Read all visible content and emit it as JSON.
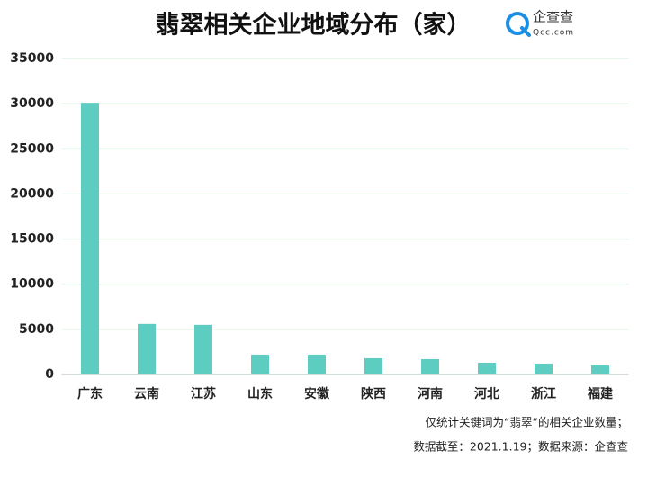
{
  "chart_data": {
    "type": "bar",
    "title": "翡翠相关企业地域分布（家）",
    "logo_text": "企查查",
    "logo_subtext": "Qcc.com",
    "categories": [
      "广东",
      "云南",
      "江苏",
      "山东",
      "安徽",
      "陕西",
      "河南",
      "河北",
      "浙江",
      "福建"
    ],
    "values": [
      30100,
      5600,
      5500,
      2200,
      2200,
      1800,
      1700,
      1300,
      1200,
      1000
    ],
    "color": "#5ecdc1",
    "ylim": [
      0,
      35000
    ],
    "yticks": [
      0,
      5000,
      10000,
      15000,
      20000,
      25000,
      30000,
      35000
    ],
    "grid": true,
    "notes": [
      "仅统计关键词为“翡翠”的相关企业数量；",
      "数据截至：2021.1.19；数据来源：企查查"
    ]
  }
}
